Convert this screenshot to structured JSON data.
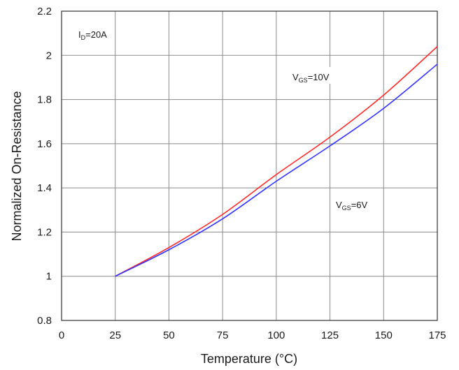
{
  "chart_data": {
    "type": "line",
    "xlabel": "Temperature (°C)",
    "ylabel": "Normalized On-Resistance",
    "xlim": [
      0,
      175
    ],
    "ylim": [
      0.8,
      2.2
    ],
    "xticks": [
      "0",
      "25",
      "50",
      "75",
      "100",
      "125",
      "150",
      "175"
    ],
    "yticks": [
      "0.8",
      "1",
      "1.2",
      "1.4",
      "1.6",
      "1.8",
      "2",
      "2.2"
    ],
    "grid": true,
    "series": [
      {
        "color": "#ff2a2a",
        "x": [
          25,
          50,
          75,
          100,
          125,
          150,
          175
        ],
        "y": [
          1.0,
          1.13,
          1.28,
          1.46,
          1.63,
          1.82,
          2.04
        ]
      },
      {
        "color": "#3333ff",
        "x": [
          25,
          50,
          75,
          100,
          125,
          150,
          175
        ],
        "y": [
          1.0,
          1.12,
          1.26,
          1.43,
          1.59,
          1.76,
          1.96
        ]
      }
    ],
    "annotations": [
      {
        "main": "I",
        "sub": "D",
        "rest": "=20A"
      },
      {
        "main": "V",
        "sub": "GS",
        "rest": "=10V"
      },
      {
        "main": "V",
        "sub": "GS",
        "rest": "=6V"
      }
    ]
  }
}
